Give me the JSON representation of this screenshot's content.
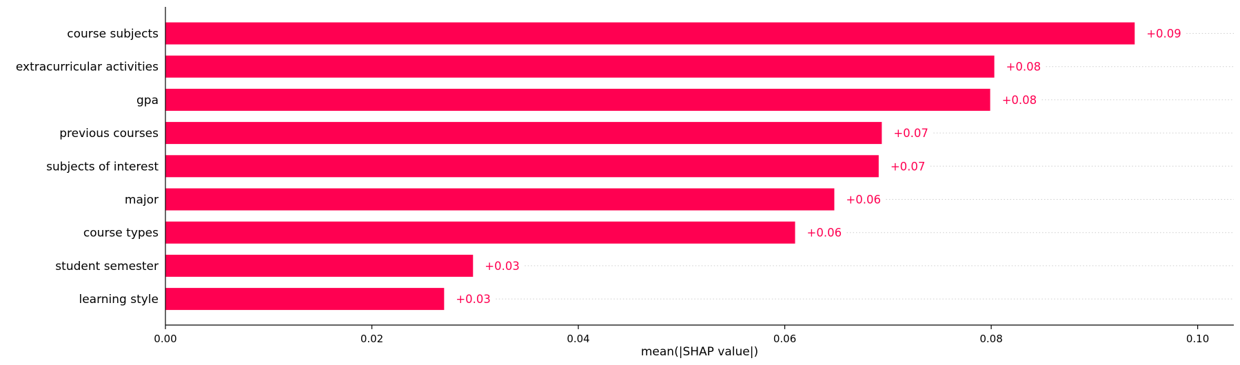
{
  "chart_data": {
    "type": "bar",
    "orientation": "horizontal",
    "categories": [
      "course subjects",
      "extracurricular activities",
      "gpa",
      "previous courses",
      "subjects of interest",
      "major",
      "course types",
      "student semester",
      "learning style"
    ],
    "values": [
      0.0939,
      0.0803,
      0.0799,
      0.0694,
      0.0691,
      0.0648,
      0.061,
      0.0298,
      0.027
    ],
    "value_labels": [
      "+0.09",
      "+0.08",
      "+0.08",
      "+0.07",
      "+0.07",
      "+0.06",
      "+0.06",
      "+0.03",
      "+0.03"
    ],
    "xlabel": "mean(|SHAP value|)",
    "ylabel": "",
    "title": "",
    "xlim": [
      0,
      0.1035
    ],
    "xticks": [
      0.0,
      0.02,
      0.04,
      0.06,
      0.08,
      0.1
    ],
    "xtick_labels": [
      "0.00",
      "0.02",
      "0.04",
      "0.06",
      "0.08",
      "0.10"
    ],
    "bar_color": "#ff0051",
    "value_label_color": "#ff0051",
    "grid": "dotted row guide lines after each bar",
    "legend": "none"
  }
}
